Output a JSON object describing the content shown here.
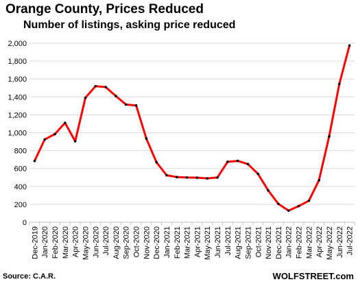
{
  "title": "Orange County, Prices Reduced",
  "subtitle": "Number of listings, asking price reduced",
  "source": "Source: C.A.R.",
  "brand": "WOLFSTREET.com",
  "chart_data": {
    "type": "line",
    "title": "Orange County, Prices Reduced",
    "subtitle": "Number of listings, asking price reduced",
    "xlabel": "",
    "ylabel": "",
    "ylim": [
      0,
      2000
    ],
    "yticks": [
      0,
      200,
      400,
      600,
      800,
      1000,
      1200,
      1400,
      1600,
      1800,
      2000
    ],
    "ytick_labels": [
      "0",
      "200",
      "400",
      "600",
      "800",
      "1,000",
      "1,200",
      "1,400",
      "1,600",
      "1,800",
      "2,000"
    ],
    "grid": "horizontal",
    "legend": "none",
    "categories": [
      "Dec-2019",
      "Jan-2020",
      "Feb-2020",
      "Mar-2020",
      "Apr-2020",
      "May-2020",
      "Jun-2020",
      "Jul-2020",
      "Aug-2020",
      "Sep-2020",
      "Oct-2020",
      "Nov-2020",
      "Dec-2020",
      "Jan-2021",
      "Feb-2021",
      "Mar-2021",
      "Apr-2021",
      "May-2021",
      "Jun-2021",
      "Jul-2021",
      "Aug-2021",
      "Sep-2021",
      "Oct-2021",
      "Nov-2021",
      "Dec-2021",
      "Jan-2022",
      "Feb-2022",
      "Mar-2022",
      "Apr-2022",
      "May-2022",
      "Jun-2022",
      "Jul-2022"
    ],
    "series": [
      {
        "values": [
          685,
          925,
          985,
          1110,
          905,
          1390,
          1520,
          1510,
          1410,
          1315,
          1305,
          935,
          670,
          525,
          505,
          500,
          498,
          490,
          500,
          675,
          685,
          650,
          540,
          355,
          205,
          130,
          180,
          240,
          470,
          960,
          1545,
          1975
        ],
        "color": "#ff0000",
        "marker_color": "#000000"
      }
    ]
  }
}
